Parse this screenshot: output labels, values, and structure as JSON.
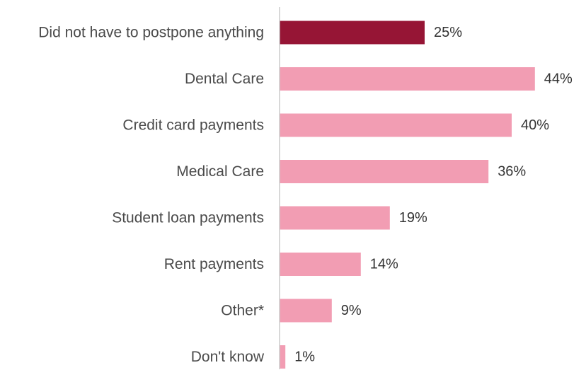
{
  "chart_data": {
    "type": "bar",
    "orientation": "horizontal",
    "categories": [
      "Did not have to postpone anything",
      "Dental Care",
      "Credit card payments",
      "Medical Care",
      "Student loan payments",
      "Rent payments",
      "Other*",
      "Don't know"
    ],
    "values": [
      25,
      44,
      40,
      36,
      19,
      14,
      9,
      1
    ],
    "value_labels": [
      "25%",
      "44%",
      "40%",
      "36%",
      "19%",
      "14%",
      "9%",
      "1%"
    ],
    "highlight_index": 0,
    "value_suffix": "%",
    "xlim": [
      0,
      50
    ],
    "grid": false,
    "legend": "none"
  },
  "colors": {
    "highlight_bar": "#961535",
    "bar": "#f29db3",
    "axis_line": "#cccccc",
    "category_text": "#4a4a4a",
    "value_text": "#333333"
  }
}
